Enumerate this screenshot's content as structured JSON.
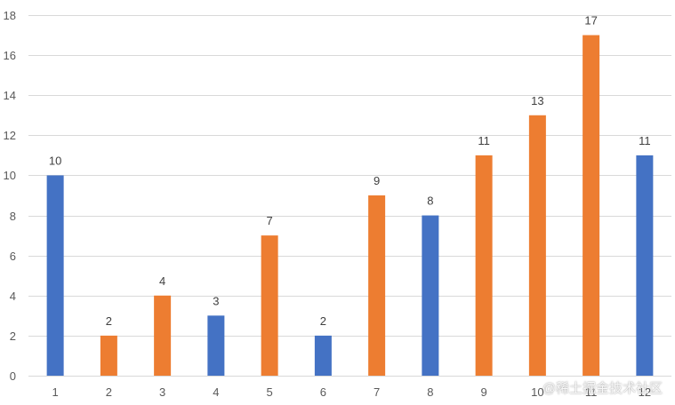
{
  "chart_data": {
    "type": "bar",
    "categories": [
      "1",
      "2",
      "3",
      "4",
      "5",
      "6",
      "7",
      "8",
      "9",
      "10",
      "11",
      "12"
    ],
    "values": [
      10,
      2,
      4,
      3,
      7,
      2,
      9,
      8,
      11,
      13,
      17,
      11
    ],
    "bar_colors": [
      "#4472C4",
      "#ED7D31",
      "#ED7D31",
      "#4472C4",
      "#ED7D31",
      "#4472C4",
      "#ED7D31",
      "#4472C4",
      "#ED7D31",
      "#ED7D31",
      "#ED7D31",
      "#4472C4"
    ],
    "ylim": [
      0,
      18
    ],
    "yticks": [
      0,
      2,
      4,
      6,
      8,
      10,
      12,
      14,
      16,
      18
    ],
    "grid": true,
    "data_labels": true,
    "title": "",
    "xlabel": "",
    "ylabel": ""
  },
  "watermark": "@稀土掘金技术社区",
  "colors": {
    "blue": "#4472C4",
    "orange": "#ED7D31",
    "gridline": "#D9D9D9",
    "axis_text": "#595959"
  }
}
